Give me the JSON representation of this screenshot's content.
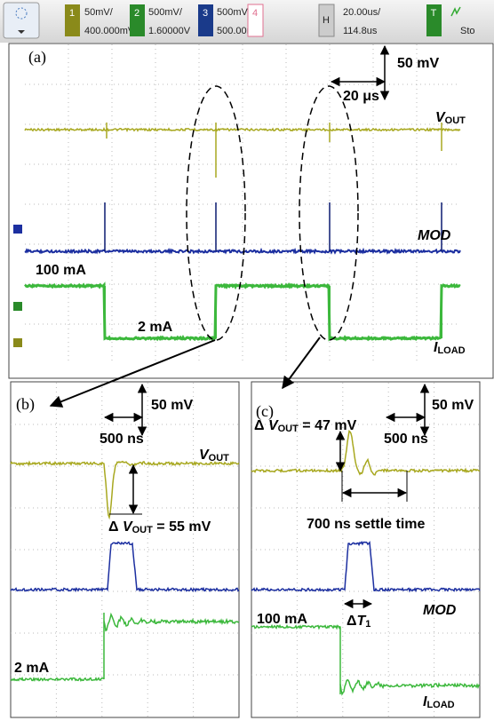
{
  "toolbar": {
    "channels": [
      {
        "number": "1",
        "scale": "50mV/",
        "offset": "400.000mV"
      },
      {
        "number": "2",
        "scale": "500mV/",
        "offset": "1.60000V"
      },
      {
        "number": "3",
        "scale": "500mV/",
        "offset": "500.00mV"
      }
    ],
    "channel4": "4",
    "horizontal": {
      "label": "H",
      "scale": "20.00us/",
      "position": "114.8us"
    },
    "trigger": {
      "label": "T",
      "status": "Sto"
    }
  },
  "panels": {
    "a": {
      "label": "(a)",
      "volt_scale": "50 mV",
      "time_scale": "20 μs",
      "vout": {
        "main": "V",
        "sub": "OUT"
      },
      "mod": "MOD",
      "high_current": "100 mA",
      "low_current": "2 mA",
      "iload": {
        "main": "I",
        "sub": "LOAD"
      }
    },
    "b": {
      "label": "(b)",
      "volt_scale": "50 mV",
      "time_scale": "500 ns",
      "vout": {
        "main": "V",
        "sub": "OUT"
      },
      "delta": {
        "prefix": "Δ ",
        "main": "V",
        "sub": "OUT",
        "suffix": " = 55 mV"
      },
      "low_current": "2 mA"
    },
    "c": {
      "label": "(c)",
      "volt_scale": "50 mV",
      "delta": {
        "prefix": "Δ ",
        "main": "V",
        "sub": "OUT",
        "suffix": " = 47 mV"
      },
      "time_scale": "500 ns",
      "settle": "700 ns settle time",
      "mod": "MOD",
      "pulse_width": {
        "prefix": "Δ",
        "main": "T",
        "sub": "1"
      },
      "high_current": "100 mA",
      "iload": {
        "main": "I",
        "sub": "LOAD"
      }
    }
  }
}
